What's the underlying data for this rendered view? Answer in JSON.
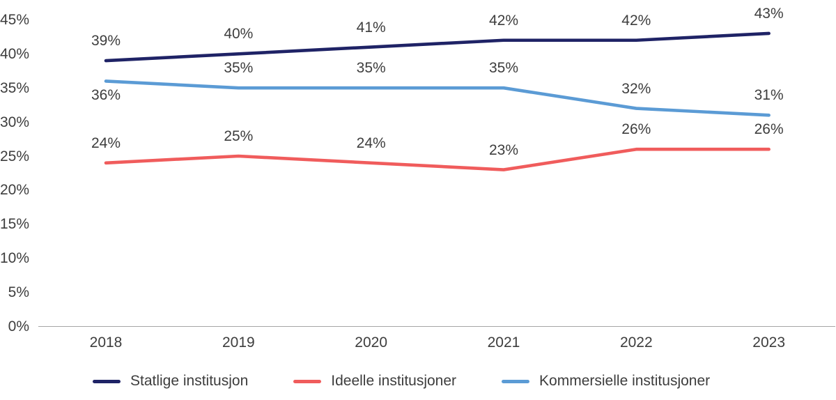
{
  "chart_data": {
    "type": "line",
    "title": "",
    "xlabel": "",
    "ylabel": "",
    "categories": [
      "2018",
      "2019",
      "2020",
      "2021",
      "2022",
      "2023"
    ],
    "series": [
      {
        "name": "Statlige institusjon",
        "color": "#1f2366",
        "values": [
          39,
          40,
          41,
          42,
          42,
          43
        ]
      },
      {
        "name": "Ideelle institusjoner",
        "color": "#f05c5c",
        "values": [
          24,
          25,
          24,
          23,
          26,
          26
        ]
      },
      {
        "name": "Kommersielle institusjoner",
        "color": "#5b9bd5",
        "values": [
          36,
          35,
          35,
          35,
          32,
          31
        ]
      }
    ],
    "unit": "%",
    "data_labels_visible": true,
    "y_ticks": [
      "0%",
      "5%",
      "10%",
      "15%",
      "20%",
      "25%",
      "30%",
      "35%",
      "40%",
      "45%"
    ],
    "ylim": [
      0,
      45
    ],
    "grid": false,
    "legend_position": "bottom",
    "axis_color": "#a6a6a6",
    "text_color": "#3d3d3d",
    "background_color": "#ffffff"
  }
}
